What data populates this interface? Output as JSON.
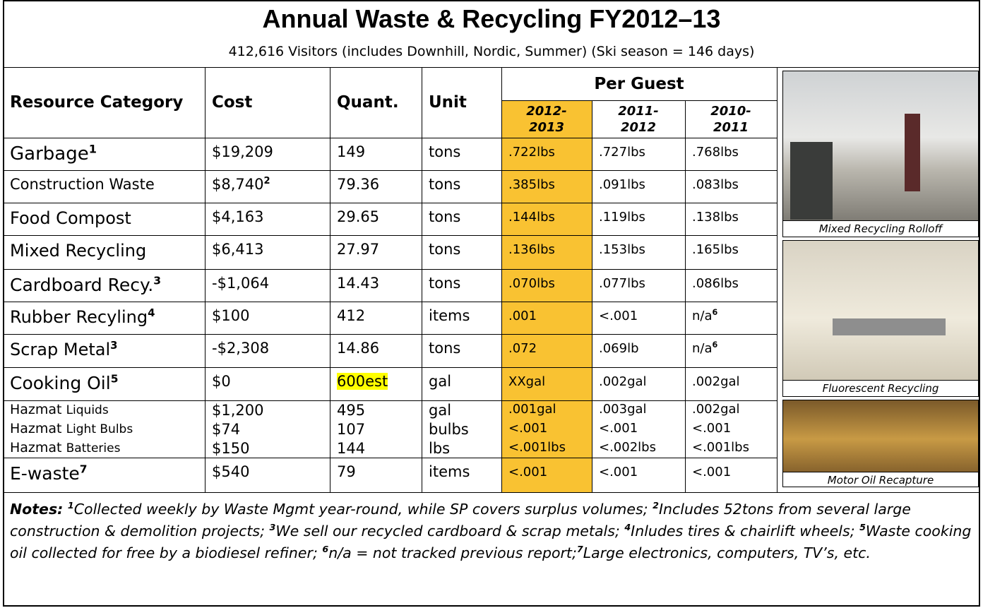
{
  "header": {
    "title": "Annual Waste & Recycling FY2012–13",
    "subtitle": "412,616 Visitors (includes Downhill, Nordic, Summer) (Ski season = 146 days)"
  },
  "table": {
    "columns": [
      "Resource Category",
      "Cost",
      "Quant.",
      "Unit"
    ],
    "per_guest_label": "Per Guest",
    "years": [
      "2012-\n2013",
      "2011-\n2012",
      "2010-\n2011"
    ],
    "rows": [
      [
        {
          "text": "Garbage",
          "sup": "1"
        },
        "$19,209",
        "149",
        "tons",
        ".722lbs",
        ".727lbs",
        ".768lbs"
      ],
      [
        "Construction Waste",
        {
          "text": "$8,740",
          "sup": "2"
        },
        "79.36",
        "tons",
        ".385lbs",
        ".091lbs",
        ".083lbs"
      ],
      [
        "Food Compost",
        "$4,163",
        "29.65",
        "tons",
        ".144lbs",
        ".119lbs",
        ".138lbs"
      ],
      [
        "Mixed Recycling",
        "$6,413",
        "27.97",
        "tons",
        ".136lbs",
        ".153lbs",
        ".165lbs"
      ],
      [
        {
          "text": "Cardboard Recy.",
          "sup": "3"
        },
        "-$1,064",
        "14.43",
        "tons",
        ".070lbs",
        ".077lbs",
        ".086lbs"
      ],
      [
        {
          "text": "Rubber Recyling",
          "sup": "4"
        },
        "$100",
        "412",
        "items",
        ".001",
        "<.001",
        {
          "text": "n/a",
          "sup": "6"
        }
      ],
      [
        {
          "text": "Scrap Metal",
          "sup": "3"
        },
        "-$2,308",
        "14.86",
        "tons",
        ".072",
        ".069lb",
        {
          "text": "n/a",
          "sup": "6"
        }
      ],
      [
        {
          "text": "Cooking Oil",
          "sup": "5"
        },
        "$0",
        {
          "text": "600est",
          "highlight": "#ffff00"
        },
        "gal",
        "XXgal",
        ".002gal",
        ".002gal"
      ],
      [
        {
          "text": "Hazmat",
          "detail": "Liquids"
        },
        "$1,200",
        "495",
        "gal",
        ".001gal",
        ".003gal",
        ".002gal"
      ],
      [
        {
          "text": "Hazmat",
          "detail": "Light Bulbs"
        },
        "$74",
        "107",
        "bulbs",
        "<.001",
        "<.001",
        "<.001"
      ],
      [
        {
          "text": "Hazmat",
          "detail": "Batteries"
        },
        "$150",
        "144",
        "lbs",
        "<.001lbs",
        "<.002lbs",
        "<.001lbs"
      ],
      [
        {
          "text": "E-waste",
          "sup": "7"
        },
        "$540",
        "79",
        "items",
        "<.001",
        "<.001",
        "<.001"
      ]
    ]
  },
  "photos": [
    "Mixed Recycling Rolloff",
    "Fluorescent Recycling",
    "Motor Oil Recapture"
  ],
  "notes": {
    "label": "Notes:",
    "items": [
      {
        "sup": "1",
        "text": "Collected weekly by Waste Mgmt year-round, while SP covers surplus volumes; "
      },
      {
        "sup": "2",
        "text": "Includes 52tons from several large construction & demolition projects; "
      },
      {
        "sup": "3",
        "text": "We sell our recycled cardboard & scrap metals; "
      },
      {
        "sup": "4",
        "text": "Inludes tires & chairlift wheels; "
      },
      {
        "sup": "5",
        "text": "Waste cooking oil collected for free by a biodiesel refiner; "
      },
      {
        "sup": "6",
        "text": "n/a = not tracked previous report;"
      },
      {
        "sup": "7",
        "text": "Large electronics, computers, TV’s, etc."
      }
    ]
  }
}
